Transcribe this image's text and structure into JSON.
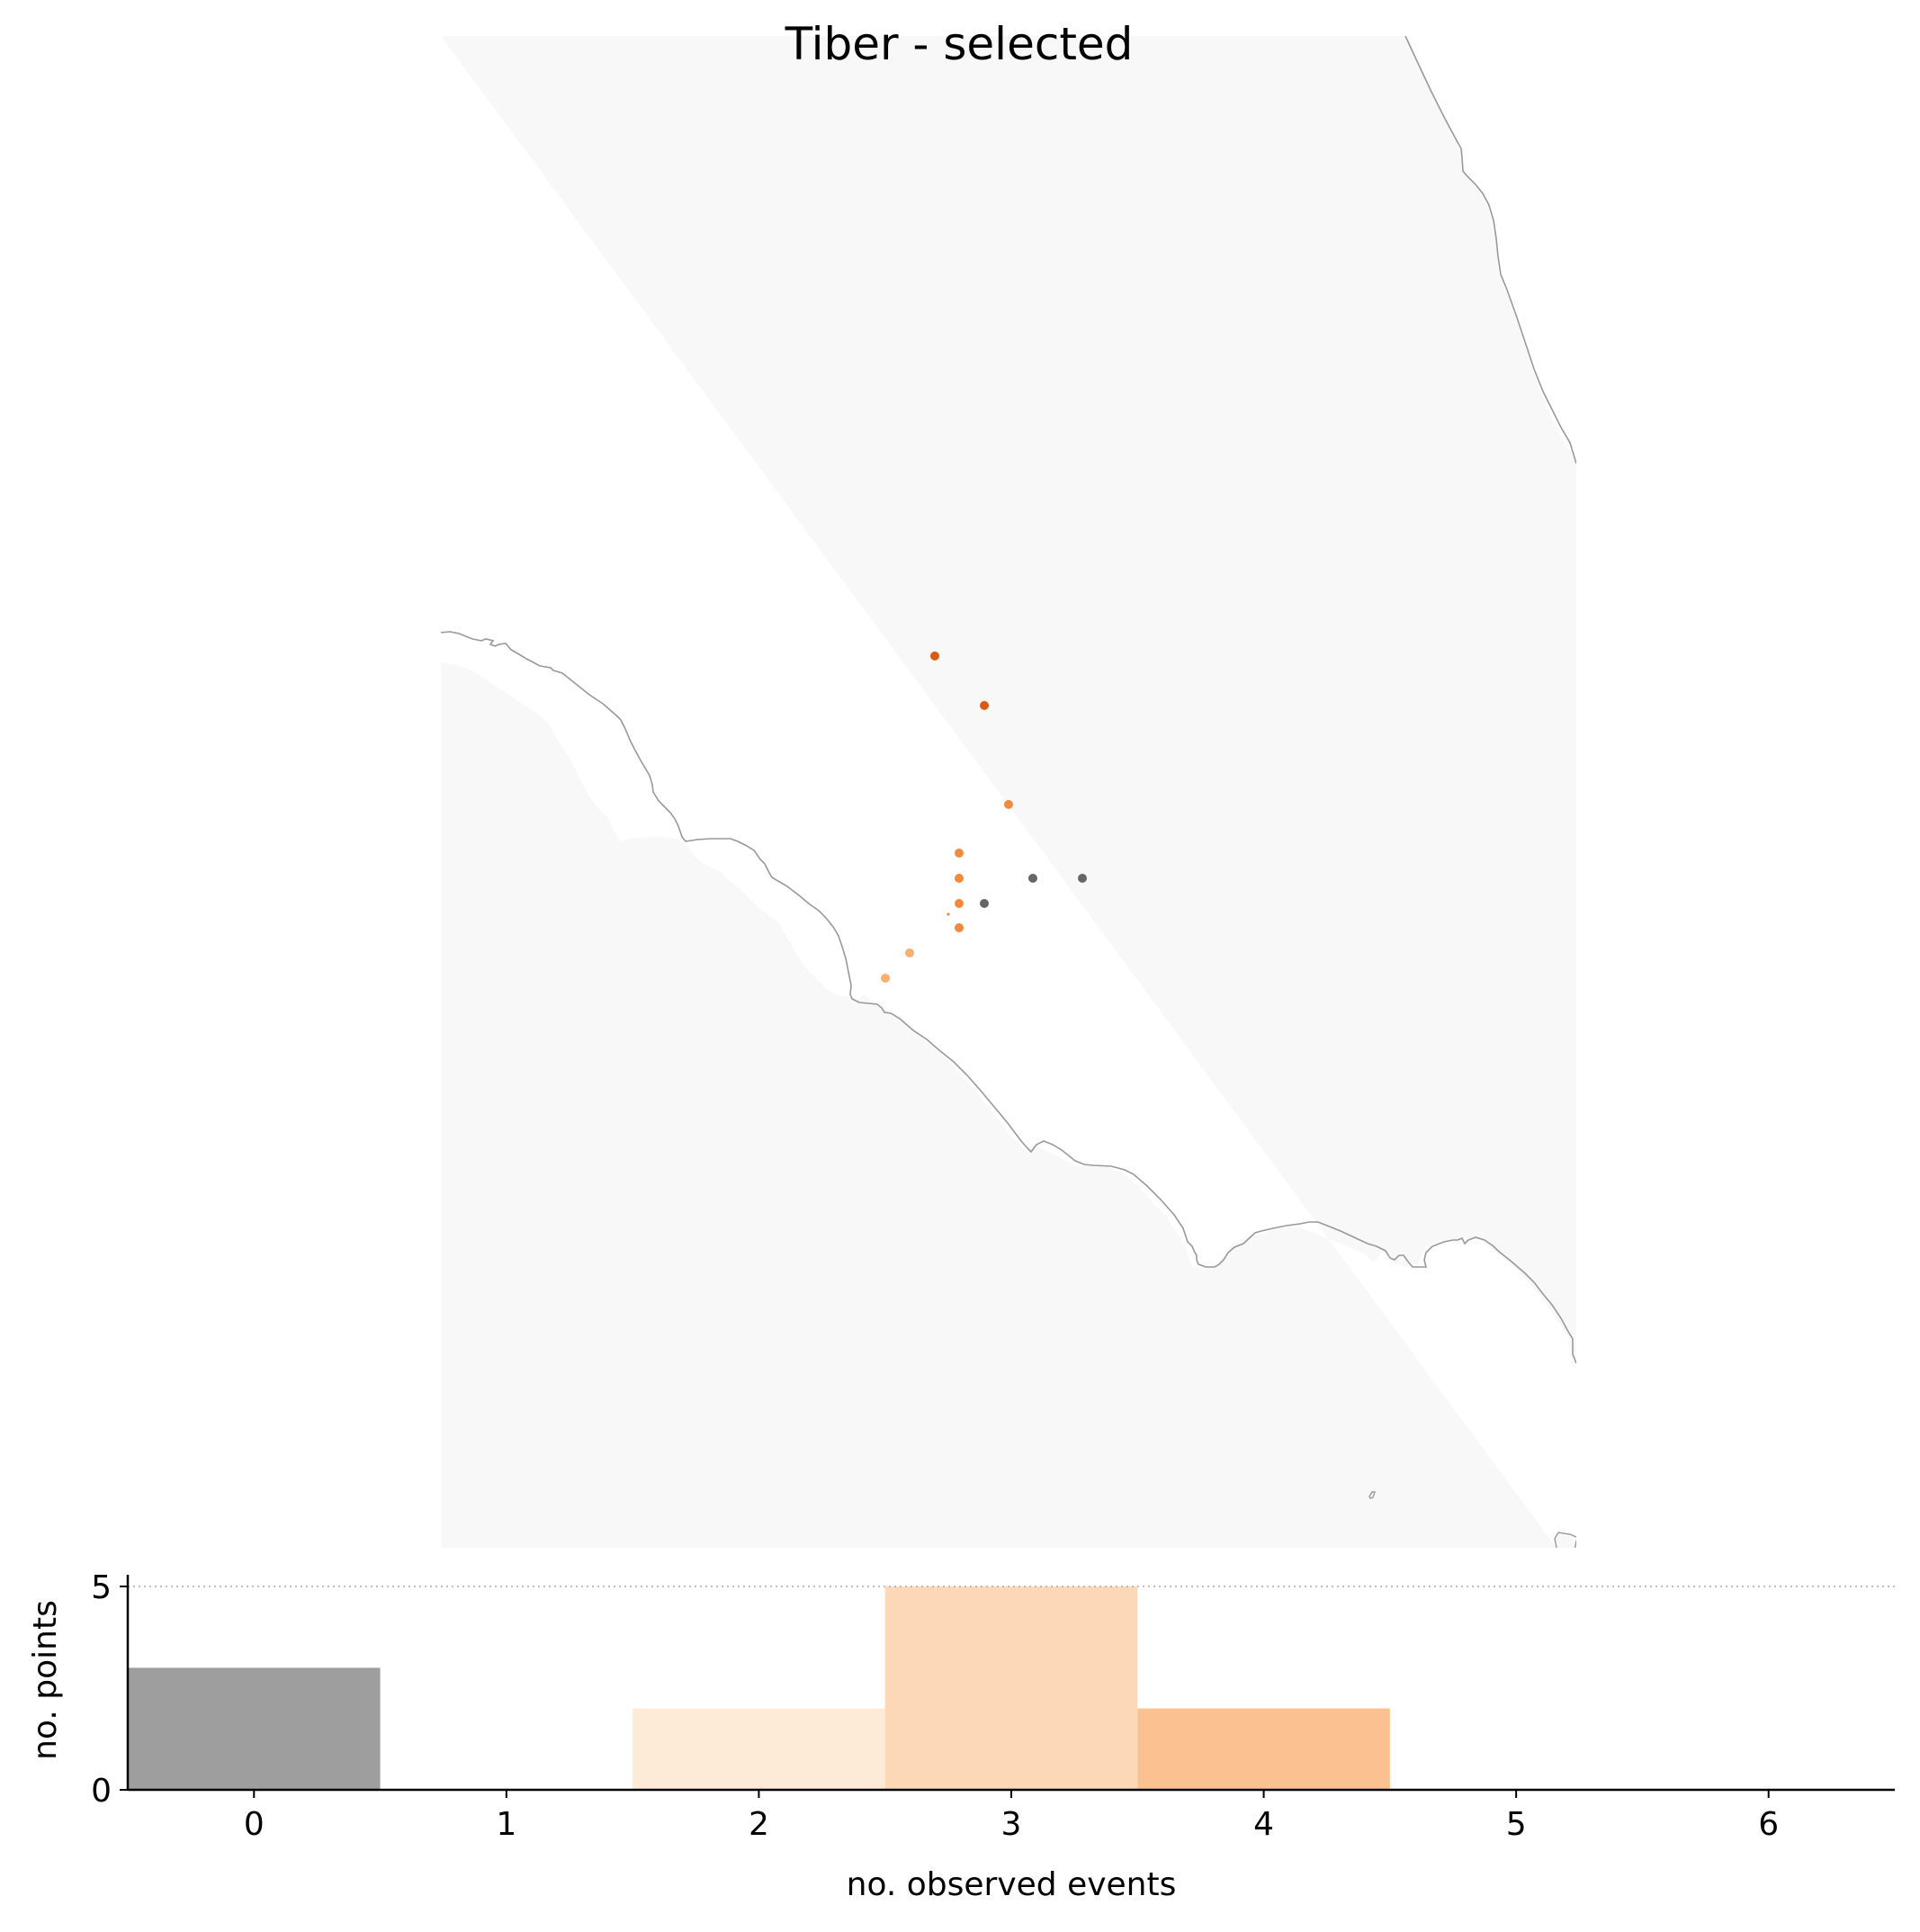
{
  "title": "Tiber - selected",
  "map": {
    "land_color": "#f8f8f8",
    "coast_color": "#999999",
    "points": [
      {
        "count": 4,
        "color": "#d95b13"
      },
      {
        "count": 4,
        "color": "#d95b13"
      },
      {
        "count": 3,
        "color": "#f08a3c"
      },
      {
        "count": 3,
        "color": "#f08a3c"
      },
      {
        "count": 3,
        "color": "#f08a3c"
      },
      {
        "count": 3,
        "color": "#f08a3c"
      },
      {
        "count": 3,
        "color": "#f08a3c"
      },
      {
        "count": 2,
        "color": "#f6b06f"
      },
      {
        "count": 2,
        "color": "#f6b06f"
      },
      {
        "count": 0,
        "color": "#666666"
      },
      {
        "count": 0,
        "color": "#666666"
      },
      {
        "count": 0,
        "color": "#666666"
      }
    ]
  },
  "chart_data": {
    "type": "bar",
    "xlabel": "no. observed events",
    "ylabel": "no. points",
    "categories": [
      0,
      1,
      2,
      3,
      4,
      5,
      6
    ],
    "values": [
      3,
      0,
      2,
      5,
      2,
      0,
      0
    ],
    "bar_colors": [
      "#9e9e9e",
      "#fdf0e2",
      "#fdebd8",
      "#fcd8b7",
      "#fbc190",
      "#f8a965",
      "#f08a3c"
    ],
    "xlim": [
      -0.5,
      6.5
    ],
    "ylim": [
      0,
      5
    ],
    "yticks": [
      0,
      5
    ],
    "reference_line": 5,
    "grid": false
  }
}
